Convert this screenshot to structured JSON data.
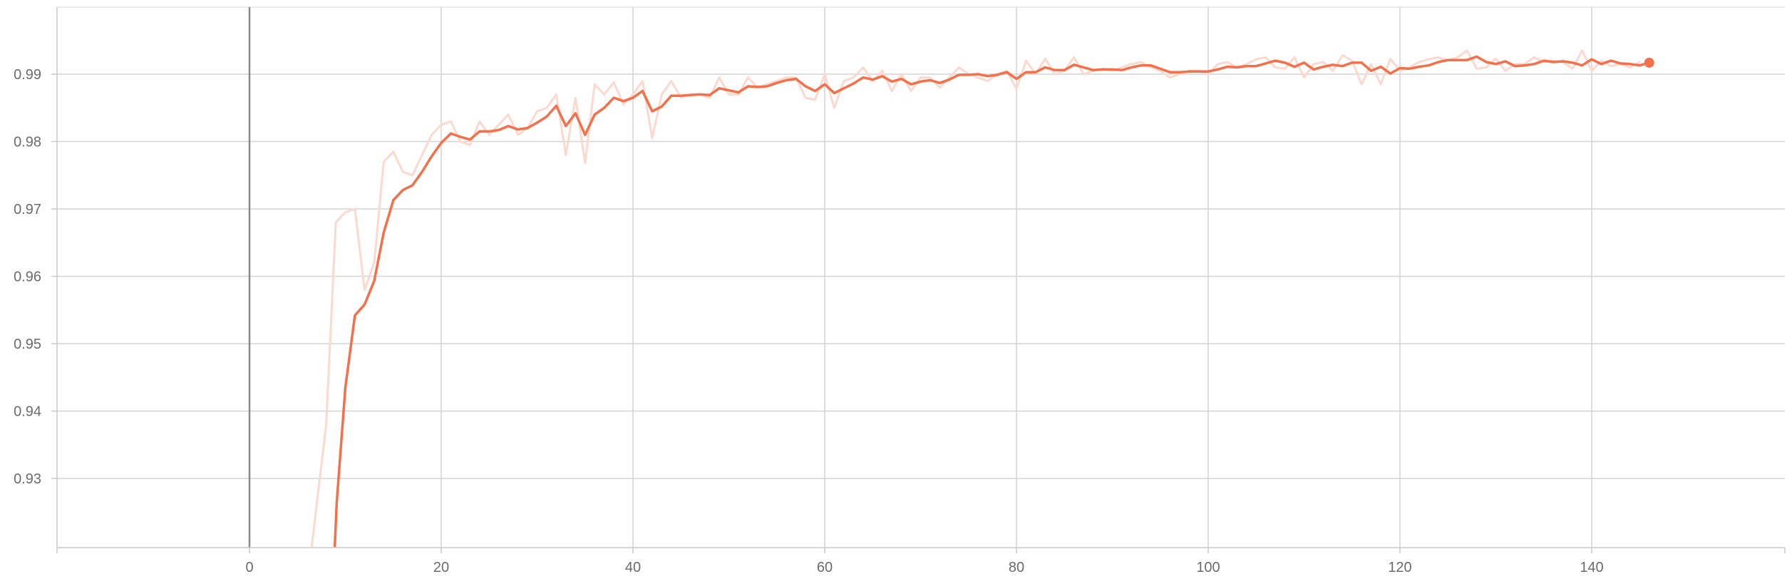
{
  "chart_data": {
    "type": "line",
    "title": "",
    "xlabel": "",
    "ylabel": "",
    "xlim": [
      -20,
      160
    ],
    "ylim": [
      0.92,
      0.9995
    ],
    "x_ticks": [
      0,
      20,
      40,
      60,
      80,
      100,
      120,
      140
    ],
    "y_ticks": [
      0.93,
      0.94,
      0.95,
      0.96,
      0.97,
      0.98,
      0.99
    ],
    "x_tick_labels": [
      "0",
      "20",
      "40",
      "60",
      "80",
      "100",
      "120",
      "140"
    ],
    "y_tick_labels": [
      "0.93",
      "0.94",
      "0.95",
      "0.96",
      "0.97",
      "0.98",
      "0.99"
    ],
    "grid": true,
    "series": [
      {
        "role": "raw",
        "color": "#fcd9cf",
        "points": [
          [
            6.5,
            0.92
          ],
          [
            8,
            0.938
          ],
          [
            9,
            0.968
          ],
          [
            10,
            0.9695
          ],
          [
            11,
            0.97
          ],
          [
            12,
            0.958
          ],
          [
            13,
            0.962
          ],
          [
            14,
            0.977
          ],
          [
            15,
            0.9785
          ],
          [
            16,
            0.9755
          ],
          [
            17,
            0.975
          ],
          [
            18,
            0.978
          ],
          [
            19,
            0.981
          ],
          [
            20,
            0.9825
          ],
          [
            21,
            0.983
          ],
          [
            22,
            0.98
          ],
          [
            23,
            0.9795
          ],
          [
            24,
            0.983
          ],
          [
            25,
            0.981
          ],
          [
            26,
            0.9825
          ],
          [
            27,
            0.984
          ],
          [
            28,
            0.981
          ],
          [
            29,
            0.982
          ],
          [
            30,
            0.9845
          ],
          [
            31,
            0.985
          ],
          [
            32,
            0.987
          ],
          [
            33,
            0.978
          ],
          [
            34,
            0.9865
          ],
          [
            35,
            0.9768
          ],
          [
            36,
            0.9885
          ],
          [
            37,
            0.987
          ],
          [
            38,
            0.9888
          ],
          [
            39,
            0.9855
          ],
          [
            40,
            0.987
          ],
          [
            41,
            0.989
          ],
          [
            42,
            0.9805
          ],
          [
            43,
            0.987
          ],
          [
            44,
            0.989
          ],
          [
            45,
            0.9865
          ],
          [
            46,
            0.987
          ],
          [
            47,
            0.987
          ],
          [
            48,
            0.9865
          ],
          [
            49,
            0.9895
          ],
          [
            50,
            0.987
          ],
          [
            51,
            0.987
          ],
          [
            52,
            0.9895
          ],
          [
            53,
            0.988
          ],
          [
            54,
            0.9885
          ],
          [
            55,
            0.989
          ],
          [
            56,
            0.9895
          ],
          [
            57,
            0.9895
          ],
          [
            58,
            0.9865
          ],
          [
            59,
            0.9862
          ],
          [
            60,
            0.99
          ],
          [
            61,
            0.985
          ],
          [
            62,
            0.989
          ],
          [
            63,
            0.9895
          ],
          [
            64,
            0.991
          ],
          [
            65,
            0.989
          ],
          [
            66,
            0.9905
          ],
          [
            67,
            0.9875
          ],
          [
            68,
            0.99
          ],
          [
            69,
            0.9875
          ],
          [
            70,
            0.9895
          ],
          [
            71,
            0.9895
          ],
          [
            72,
            0.988
          ],
          [
            73,
            0.9895
          ],
          [
            74,
            0.991
          ],
          [
            75,
            0.99
          ],
          [
            76,
            0.9895
          ],
          [
            77,
            0.989
          ],
          [
            78,
            0.99
          ],
          [
            79,
            0.9905
          ],
          [
            80,
            0.9878
          ],
          [
            81,
            0.992
          ],
          [
            82,
            0.99
          ],
          [
            83,
            0.9923
          ],
          [
            84,
            0.99
          ],
          [
            85,
            0.9905
          ],
          [
            86,
            0.9925
          ],
          [
            87,
            0.99
          ],
          [
            88,
            0.9905
          ],
          [
            89,
            0.9908
          ],
          [
            90,
            0.9905
          ],
          [
            91,
            0.991
          ],
          [
            92,
            0.9915
          ],
          [
            93,
            0.9918
          ],
          [
            94,
            0.991
          ],
          [
            95,
            0.9905
          ],
          [
            96,
            0.9895
          ],
          [
            97,
            0.99
          ],
          [
            98,
            0.9905
          ],
          [
            99,
            0.9905
          ],
          [
            100,
            0.99
          ],
          [
            101,
            0.9915
          ],
          [
            102,
            0.9918
          ],
          [
            103,
            0.991
          ],
          [
            104,
            0.9915
          ],
          [
            105,
            0.9922
          ],
          [
            106,
            0.9925
          ],
          [
            107,
            0.991
          ],
          [
            108,
            0.9908
          ],
          [
            109,
            0.9925
          ],
          [
            110,
            0.9895
          ],
          [
            111,
            0.9915
          ],
          [
            112,
            0.9918
          ],
          [
            113,
            0.9905
          ],
          [
            114,
            0.9928
          ],
          [
            115,
            0.992
          ],
          [
            116,
            0.9885
          ],
          [
            117,
            0.9915
          ],
          [
            118,
            0.9885
          ],
          [
            119,
            0.9923
          ],
          [
            120,
            0.9905
          ],
          [
            121,
            0.991
          ],
          [
            122,
            0.9918
          ],
          [
            123,
            0.9922
          ],
          [
            124,
            0.9925
          ],
          [
            125,
            0.992
          ],
          [
            126,
            0.9925
          ],
          [
            127,
            0.9935
          ],
          [
            128,
            0.9908
          ],
          [
            129,
            0.991
          ],
          [
            130,
            0.9923
          ],
          [
            131,
            0.9905
          ],
          [
            132,
            0.9915
          ],
          [
            133,
            0.9915
          ],
          [
            134,
            0.9925
          ],
          [
            135,
            0.9918
          ],
          [
            136,
            0.992
          ],
          [
            137,
            0.9918
          ],
          [
            138,
            0.9908
          ],
          [
            139,
            0.9935
          ],
          [
            140,
            0.9905
          ],
          [
            141,
            0.992
          ],
          [
            142,
            0.9912
          ],
          [
            143,
            0.9915
          ],
          [
            144,
            0.991
          ],
          [
            145,
            0.9918
          ]
        ]
      },
      {
        "role": "smoothed",
        "color": "#f4704a",
        "points": [
          [
            8.9,
            0.92
          ],
          [
            9.1,
            0.9265
          ],
          [
            10,
            0.9435
          ],
          [
            11,
            0.9542
          ],
          [
            12,
            0.9558
          ],
          [
            13,
            0.9593
          ],
          [
            14,
            0.9665
          ],
          [
            15,
            0.9713
          ],
          [
            16,
            0.9728
          ],
          [
            17,
            0.9735
          ],
          [
            18,
            0.9755
          ],
          [
            19,
            0.9778
          ],
          [
            20,
            0.9798
          ],
          [
            21,
            0.9812
          ],
          [
            22,
            0.9807
          ],
          [
            23,
            0.9803
          ],
          [
            24,
            0.9815
          ],
          [
            25,
            0.9815
          ],
          [
            26,
            0.9817
          ],
          [
            27,
            0.9823
          ],
          [
            28,
            0.9818
          ],
          [
            29,
            0.982
          ],
          [
            30,
            0.9828
          ],
          [
            31,
            0.9837
          ],
          [
            32,
            0.9853
          ],
          [
            33,
            0.9823
          ],
          [
            34,
            0.9842
          ],
          [
            35,
            0.981
          ],
          [
            36,
            0.984
          ],
          [
            37,
            0.985
          ],
          [
            38,
            0.9865
          ],
          [
            39,
            0.986
          ],
          [
            40,
            0.9865
          ],
          [
            41,
            0.9875
          ],
          [
            42,
            0.9845
          ],
          [
            43,
            0.9852
          ],
          [
            44,
            0.9868
          ],
          [
            45,
            0.9868
          ],
          [
            46,
            0.9869
          ],
          [
            47,
            0.987
          ],
          [
            48,
            0.9869
          ],
          [
            49,
            0.9879
          ],
          [
            50,
            0.9876
          ],
          [
            51,
            0.9873
          ],
          [
            52,
            0.9882
          ],
          [
            53,
            0.9881
          ],
          [
            54,
            0.9882
          ],
          [
            55,
            0.9887
          ],
          [
            56,
            0.9891
          ],
          [
            57,
            0.9893
          ],
          [
            58,
            0.9882
          ],
          [
            59,
            0.9875
          ],
          [
            60,
            0.9885
          ],
          [
            61,
            0.9872
          ],
          [
            62,
            0.9879
          ],
          [
            63,
            0.9886
          ],
          [
            64,
            0.9895
          ],
          [
            65,
            0.9892
          ],
          [
            66,
            0.9897
          ],
          [
            67,
            0.9889
          ],
          [
            68,
            0.9893
          ],
          [
            69,
            0.9885
          ],
          [
            70,
            0.9889
          ],
          [
            71,
            0.9891
          ],
          [
            72,
            0.9887
          ],
          [
            73,
            0.9892
          ],
          [
            74,
            0.9899
          ],
          [
            75,
            0.9899
          ],
          [
            76,
            0.99
          ],
          [
            77,
            0.9897
          ],
          [
            78,
            0.9899
          ],
          [
            79,
            0.9903
          ],
          [
            80,
            0.9893
          ],
          [
            81,
            0.9903
          ],
          [
            82,
            0.9903
          ],
          [
            83,
            0.991
          ],
          [
            84,
            0.9906
          ],
          [
            85,
            0.9906
          ],
          [
            86,
            0.9914
          ],
          [
            87,
            0.991
          ],
          [
            88,
            0.9906
          ],
          [
            89,
            0.9907
          ],
          [
            90,
            0.9907
          ],
          [
            91,
            0.9906
          ],
          [
            92,
            0.991
          ],
          [
            93,
            0.9913
          ],
          [
            94,
            0.9913
          ],
          [
            95,
            0.9908
          ],
          [
            96,
            0.9903
          ],
          [
            97,
            0.9903
          ],
          [
            98,
            0.9904
          ],
          [
            99,
            0.9904
          ],
          [
            100,
            0.9904
          ],
          [
            101,
            0.9907
          ],
          [
            102,
            0.9911
          ],
          [
            103,
            0.991
          ],
          [
            104,
            0.9912
          ],
          [
            105,
            0.9912
          ],
          [
            106,
            0.9916
          ],
          [
            107,
            0.992
          ],
          [
            108,
            0.9917
          ],
          [
            109,
            0.9911
          ],
          [
            110,
            0.9917
          ],
          [
            111,
            0.9907
          ],
          [
            112,
            0.9911
          ],
          [
            113,
            0.9914
          ],
          [
            114,
            0.9912
          ],
          [
            115,
            0.9917
          ],
          [
            116,
            0.9917
          ],
          [
            117,
            0.9905
          ],
          [
            118,
            0.9911
          ],
          [
            119,
            0.9901
          ],
          [
            120,
            0.9909
          ],
          [
            121,
            0.9908
          ],
          [
            122,
            0.9911
          ],
          [
            123,
            0.9913
          ],
          [
            124,
            0.9918
          ],
          [
            125,
            0.9921
          ],
          [
            126,
            0.9921
          ],
          [
            127,
            0.9921
          ],
          [
            128,
            0.9926
          ],
          [
            129,
            0.9918
          ],
          [
            130,
            0.9915
          ],
          [
            131,
            0.9919
          ],
          [
            132,
            0.9912
          ],
          [
            133,
            0.9913
          ],
          [
            134,
            0.9915
          ],
          [
            135,
            0.992
          ],
          [
            136,
            0.9918
          ],
          [
            137,
            0.9919
          ],
          [
            138,
            0.9917
          ],
          [
            139,
            0.9913
          ],
          [
            140,
            0.9922
          ],
          [
            141,
            0.9915
          ],
          [
            142,
            0.992
          ],
          [
            143,
            0.9916
          ],
          [
            144,
            0.9915
          ],
          [
            145,
            0.9913
          ],
          [
            146,
            0.9917
          ]
        ],
        "endpoint": [
          146,
          0.9917
        ]
      }
    ]
  }
}
